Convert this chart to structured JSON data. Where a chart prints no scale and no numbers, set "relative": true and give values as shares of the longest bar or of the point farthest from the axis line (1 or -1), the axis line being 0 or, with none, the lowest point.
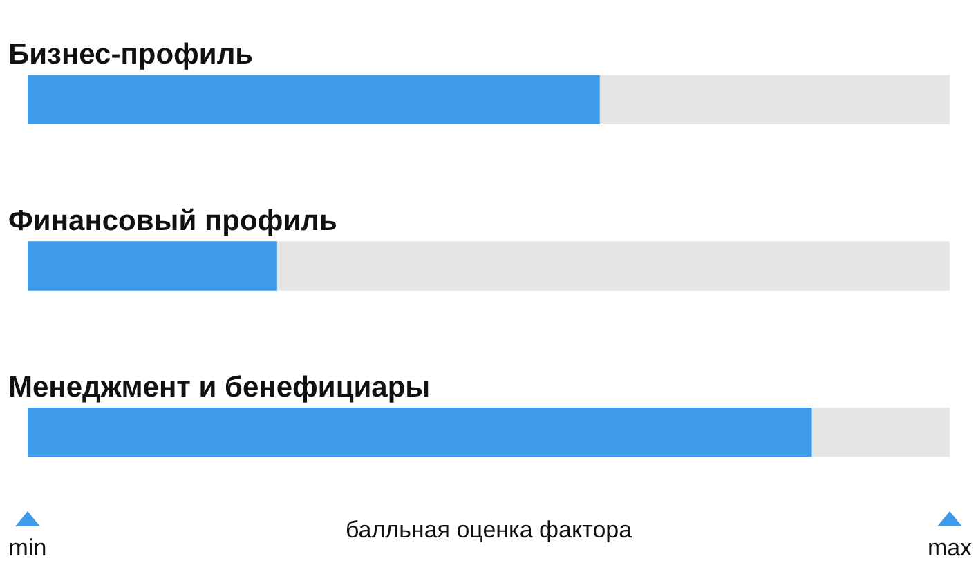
{
  "chart_data": {
    "type": "bar",
    "orientation": "horizontal",
    "relative": true,
    "stacked": true,
    "categories": [
      "Бизнес-профиль",
      "Финансовый профиль",
      "Менеджмент и бенефициары"
    ],
    "series": [
      {
        "color": "#3d9be9",
        "values": [
          0.62,
          0.27,
          0.85
        ]
      },
      {
        "color": "#e6e6e6",
        "values": [
          0.38,
          0.73,
          0.15
        ]
      }
    ],
    "xlabel": "балльная оценка фактора",
    "annotations": [
      "min",
      "max"
    ],
    "legend": false
  }
}
